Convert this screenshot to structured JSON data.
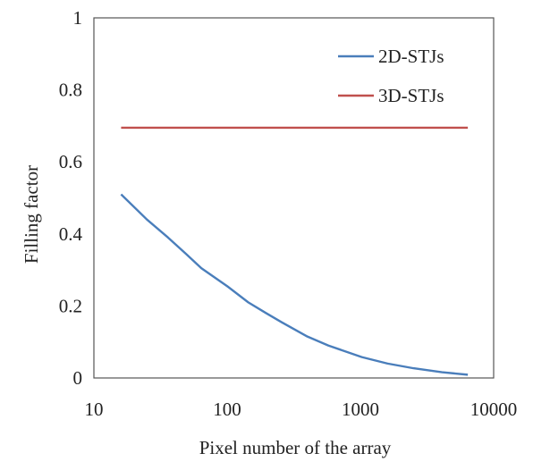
{
  "chart_data": {
    "type": "line",
    "title": "",
    "xlabel": "Pixel number of the array",
    "ylabel": "Filling factor",
    "x_scale": "log",
    "xlim": [
      10,
      10000
    ],
    "ylim": [
      0,
      1
    ],
    "x_ticks": [
      {
        "value": 10,
        "label": "10"
      },
      {
        "value": 100,
        "label": "100"
      },
      {
        "value": 1000,
        "label": "1000"
      },
      {
        "value": 10000,
        "label": "10000"
      }
    ],
    "y_ticks": [
      {
        "value": 0,
        "label": "0"
      },
      {
        "value": 0.2,
        "label": "0.2"
      },
      {
        "value": 0.4,
        "label": "0.4"
      },
      {
        "value": 0.6,
        "label": "0.6"
      },
      {
        "value": 0.8,
        "label": "0.8"
      },
      {
        "value": 1,
        "label": "1"
      }
    ],
    "grid": false,
    "legend_position": "top-right",
    "series": [
      {
        "name": "2D-STJs",
        "color": "#4a7ebb",
        "points": [
          {
            "x": 16,
            "y": 0.51
          },
          {
            "x": 25,
            "y": 0.44
          },
          {
            "x": 36,
            "y": 0.39
          },
          {
            "x": 49,
            "y": 0.345
          },
          {
            "x": 64,
            "y": 0.305
          },
          {
            "x": 100,
            "y": 0.255
          },
          {
            "x": 144,
            "y": 0.21
          },
          {
            "x": 196,
            "y": 0.18
          },
          {
            "x": 256,
            "y": 0.155
          },
          {
            "x": 400,
            "y": 0.115
          },
          {
            "x": 576,
            "y": 0.09
          },
          {
            "x": 1024,
            "y": 0.058
          },
          {
            "x": 1600,
            "y": 0.04
          },
          {
            "x": 2500,
            "y": 0.027
          },
          {
            "x": 4096,
            "y": 0.016
          },
          {
            "x": 6400,
            "y": 0.009
          }
        ]
      },
      {
        "name": "3D-STJs",
        "color": "#c0504d",
        "points": [
          {
            "x": 16,
            "y": 0.695
          },
          {
            "x": 6400,
            "y": 0.695
          }
        ]
      }
    ]
  }
}
